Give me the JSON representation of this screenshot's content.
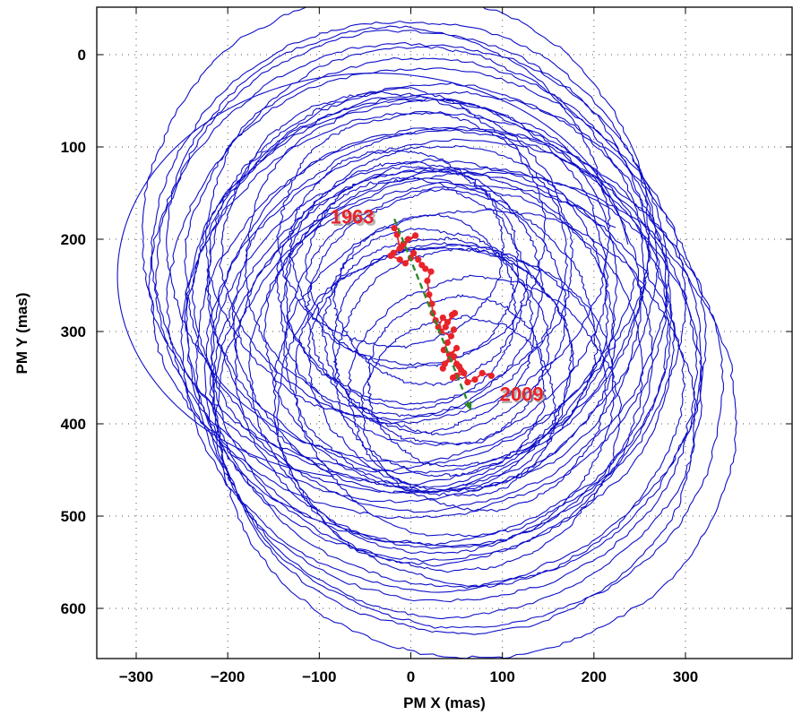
{
  "chart_data": {
    "type": "line",
    "xlabel": "PM X (mas)",
    "ylabel": "PM Y (mas)",
    "xlim": [
      -350,
      340
    ],
    "ylim": [
      -45,
      650
    ],
    "y_axis_reversed": true,
    "grid": true,
    "xticks": [
      -300,
      -200,
      -100,
      0,
      100,
      200,
      300
    ],
    "yticks": [
      0,
      100,
      200,
      300,
      400,
      500,
      600
    ],
    "xtick_labels": [
      "−300",
      "−200",
      "−100",
      "0",
      "100",
      "200",
      "300"
    ],
    "ytick_labels": [
      "0",
      "100",
      "200",
      "300",
      "400",
      "500",
      "600"
    ],
    "colors": {
      "polar_motion": "#1010c8",
      "mean_pole": "#e8232a",
      "trend": "#2a8a2a"
    },
    "series": [
      {
        "style": "wobble-loops",
        "description_center_x": [
          -22,
          70
        ],
        "description_center_y": [
          185,
          385
        ],
        "radius_range": [
          110,
          320
        ],
        "loop_count": 48
      },
      {
        "style": "mean-pole-path",
        "x": [
          -18,
          -15,
          -12,
          -19,
          -8,
          -3,
          5,
          -10,
          -22,
          -12,
          -6,
          0,
          3,
          8,
          12,
          16,
          22,
          18,
          20,
          23,
          24,
          27,
          30,
          35,
          40,
          45,
          48,
          38,
          33,
          44,
          47,
          40,
          36,
          42,
          50,
          37,
          35,
          43,
          47,
          50,
          53,
          55,
          50,
          46,
          58,
          62,
          70,
          78,
          88
        ],
        "y": [
          188,
          195,
          210,
          215,
          205,
          200,
          196,
          208,
          218,
          222,
          226,
          220,
          215,
          222,
          228,
          232,
          235,
          245,
          260,
          270,
          280,
          288,
          295,
          285,
          290,
          282,
          280,
          295,
          300,
          305,
          298,
          312,
          320,
          325,
          318,
          335,
          340,
          330,
          327,
          335,
          338,
          342,
          348,
          350,
          345,
          355,
          352,
          345,
          348
        ]
      },
      {
        "style": "trend-line",
        "x": [
          -18,
          66
        ],
        "y": [
          178,
          386
        ]
      }
    ],
    "annotations": [
      {
        "text": "1963",
        "x": -88,
        "y": 183
      },
      {
        "text": "2009",
        "x": 97,
        "y": 375
      }
    ]
  }
}
